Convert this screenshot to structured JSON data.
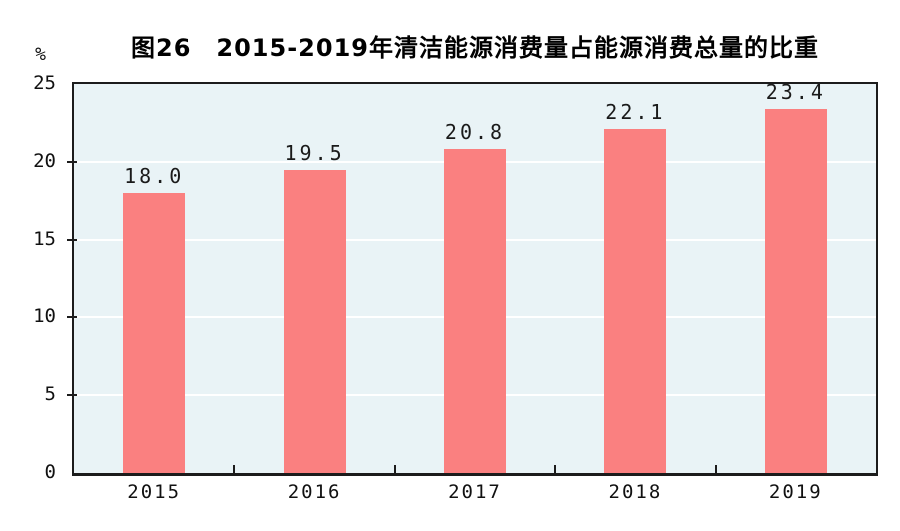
{
  "chart_data": {
    "type": "bar",
    "title": "图26　2015-2019年清洁能源消费量占能源消费总量的比重",
    "ylabel": "%",
    "categories": [
      "2015",
      "2016",
      "2017",
      "2018",
      "2019"
    ],
    "values": [
      18.0,
      19.5,
      20.8,
      22.1,
      23.4
    ],
    "value_labels": [
      "18.0",
      "19.5",
      "20.8",
      "22.1",
      "23.4"
    ],
    "ylim": [
      0,
      25
    ],
    "yticks": [
      0,
      5,
      10,
      15,
      20,
      25
    ],
    "ytick_labels": [
      "0",
      "5",
      "10",
      "15",
      "20",
      "25"
    ],
    "grid": true,
    "legend": "none",
    "colors": {
      "bar": "#fa8080",
      "plot_background": "#e9f3f6",
      "gridline": "#ffffff",
      "axis": "#1c1c1c",
      "text": "#111111"
    }
  }
}
